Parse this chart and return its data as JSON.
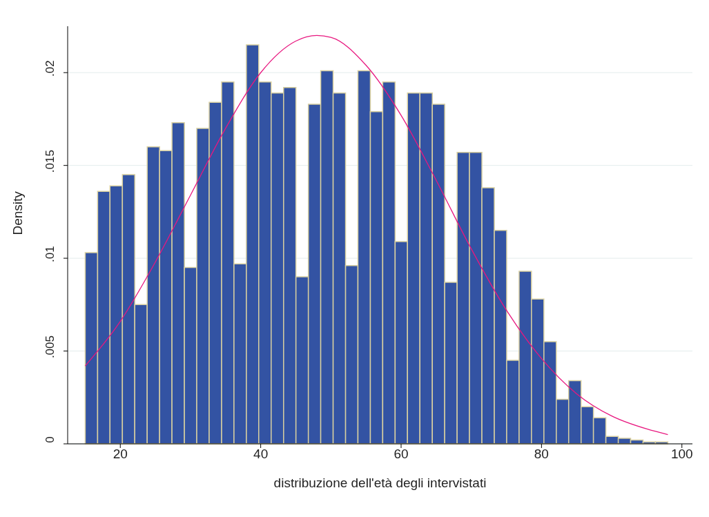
{
  "chart_data": {
    "type": "histogram",
    "xlabel": "distribuzione dell'età degli intervistati",
    "ylabel": "Density",
    "bins": [
      15,
      16.77,
      18.53,
      20.3,
      22.06,
      23.83,
      25.6,
      27.36,
      29.13,
      30.89,
      32.66,
      34.43,
      36.19,
      37.96,
      39.72,
      41.49,
      43.26,
      45.02,
      46.79,
      48.55,
      50.32,
      52.09,
      53.85,
      55.62,
      57.38,
      59.15,
      60.91,
      62.68,
      64.45,
      66.21,
      67.98,
      69.74,
      71.51,
      73.28,
      75.04,
      76.81,
      78.57,
      80.34,
      82.11,
      83.87,
      85.64,
      87.4,
      89.17,
      90.94,
      92.7,
      94.47,
      96.23,
      98
    ],
    "values": [
      0.0103,
      0.0136,
      0.0139,
      0.0145,
      0.0075,
      0.016,
      0.0158,
      0.0173,
      0.0095,
      0.017,
      0.0184,
      0.0195,
      0.0097,
      0.0215,
      0.0195,
      0.0189,
      0.0192,
      0.009,
      0.0183,
      0.0201,
      0.0189,
      0.0096,
      0.0201,
      0.0179,
      0.0195,
      0.0109,
      0.0189,
      0.0189,
      0.0183,
      0.0087,
      0.0157,
      0.0157,
      0.0138,
      0.0115,
      0.0045,
      0.0093,
      0.0078,
      0.0055,
      0.0024,
      0.0034,
      0.002,
      0.0014,
      0.0004,
      0.0003,
      0.0002,
      0.0001,
      0.0001
    ],
    "color": "#3353a3",
    "series": [
      {
        "type": "line",
        "color": "#e8177f",
        "x": [
          15,
          20,
          25,
          30,
          35,
          40,
          45,
          48,
          50,
          55,
          60,
          65,
          70,
          75,
          80,
          85,
          90,
          95,
          98
        ],
        "values": [
          0.0042,
          0.0066,
          0.0098,
          0.0134,
          0.017,
          0.02,
          0.0217,
          0.022,
          0.0219,
          0.0204,
          0.0177,
          0.0142,
          0.0105,
          0.0072,
          0.0046,
          0.0027,
          0.0015,
          0.0008,
          0.0005
        ]
      }
    ],
    "xlim": [
      12.5,
      101.5
    ],
    "xticks": [
      20,
      40,
      60,
      80,
      100
    ],
    "ylim": [
      0,
      0.0225
    ],
    "yticks": [
      {
        "value": 0,
        "label": "0"
      },
      {
        "value": 0.005,
        "label": ".005"
      },
      {
        "value": 0.01,
        "label": ".01"
      },
      {
        "value": 0.015,
        "label": ".015"
      },
      {
        "value": 0.02,
        "label": ".02"
      }
    ],
    "grid": "y"
  }
}
